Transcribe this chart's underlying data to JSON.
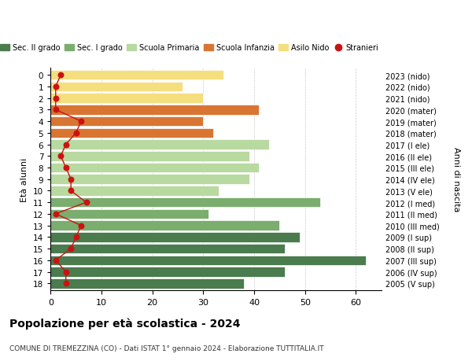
{
  "ages": [
    0,
    1,
    2,
    3,
    4,
    5,
    6,
    7,
    8,
    9,
    10,
    11,
    12,
    13,
    14,
    15,
    16,
    17,
    18
  ],
  "bar_values": [
    34,
    26,
    30,
    41,
    30,
    32,
    43,
    39,
    41,
    39,
    33,
    53,
    31,
    45,
    49,
    46,
    62,
    46,
    38
  ],
  "right_labels": [
    "2023 (nido)",
    "2022 (nido)",
    "2021 (nido)",
    "2020 (mater)",
    "2019 (mater)",
    "2018 (mater)",
    "2017 (I ele)",
    "2016 (II ele)",
    "2015 (III ele)",
    "2014 (IV ele)",
    "2013 (V ele)",
    "2012 (I med)",
    "2011 (II med)",
    "2010 (III med)",
    "2009 (I sup)",
    "2008 (II sup)",
    "2007 (III sup)",
    "2006 (IV sup)",
    "2005 (V sup)"
  ],
  "bar_colors": [
    "#f5de7e",
    "#f5de7e",
    "#f5de7e",
    "#d97532",
    "#d97532",
    "#d97532",
    "#b8d9a0",
    "#b8d9a0",
    "#b8d9a0",
    "#b8d9a0",
    "#b8d9a0",
    "#7aad6e",
    "#7aad6e",
    "#7aad6e",
    "#4a7c4e",
    "#4a7c4e",
    "#4a7c4e",
    "#4a7c4e",
    "#4a7c4e"
  ],
  "stranieri_values": [
    2,
    1,
    1,
    1,
    6,
    5,
    3,
    2,
    3,
    4,
    4,
    7,
    1,
    6,
    5,
    4,
    1,
    3,
    3
  ],
  "stranieri_color": "#cc1111",
  "legend_entries": [
    {
      "label": "Sec. II grado",
      "color": "#4a7c4e",
      "type": "patch"
    },
    {
      "label": "Sec. I grado",
      "color": "#7aad6e",
      "type": "patch"
    },
    {
      "label": "Scuola Primaria",
      "color": "#b8d9a0",
      "type": "patch"
    },
    {
      "label": "Scuola Infanzia",
      "color": "#d97532",
      "type": "patch"
    },
    {
      "label": "Asilo Nido",
      "color": "#f5de7e",
      "type": "patch"
    },
    {
      "label": "Stranieri",
      "color": "#cc1111",
      "type": "circle"
    }
  ],
  "ylabel_left": "Età alunni",
  "ylabel_right": "Anni di nascita",
  "title": "Popolazione per età scolastica - 2024",
  "subtitle": "COMUNE DI TREMEZZINA (CO) - Dati ISTAT 1° gennaio 2024 - Elaborazione TUTTITALIA.IT",
  "xlim": [
    0,
    65
  ],
  "xticks": [
    0,
    10,
    20,
    30,
    40,
    50,
    60
  ],
  "bg_color": "#ffffff",
  "grid_color": "#cccccc"
}
